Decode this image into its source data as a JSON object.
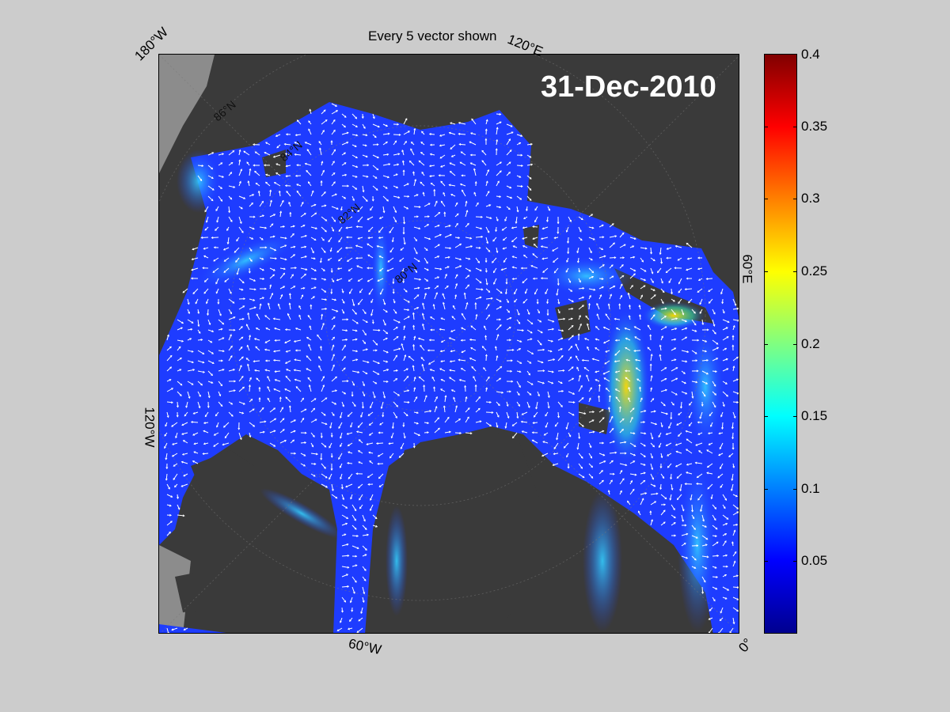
{
  "title": "Every 5 vector shown",
  "date": "31-Dec-2010",
  "longitude_labels": {
    "top_left": "180°W",
    "top_right": "120°E",
    "right": "60°E",
    "left": "120°W",
    "bottom": "60°W",
    "bottom_right": "0°"
  },
  "latitude_labels": [
    "86°N",
    "84°N",
    "82°N",
    "80°N"
  ],
  "colorbar": {
    "min": 0,
    "max": 0.4,
    "ticks": [
      "0.4",
      "0.35",
      "0.3",
      "0.25",
      "0.2",
      "0.15",
      "0.1",
      "0.05"
    ],
    "colormap": "jet",
    "colors": [
      "#00008f",
      "#0000ff",
      "#0080ff",
      "#00ffff",
      "#80ff80",
      "#ffff00",
      "#ff8000",
      "#ff0000",
      "#800000"
    ]
  },
  "map_colors": {
    "land": "#3a3a3a",
    "land_shelf": "#8c8c8c",
    "ocean": "#1e3cff",
    "vectors": "#ffffff"
  }
}
